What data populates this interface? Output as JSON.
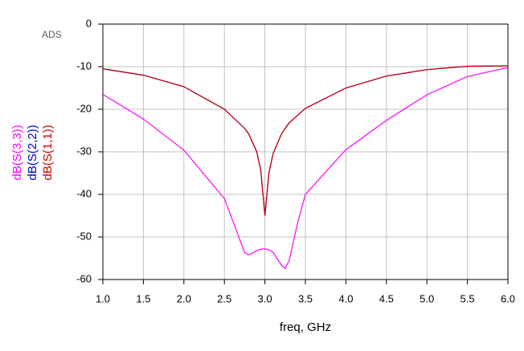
{
  "chart_data": {
    "type": "line",
    "watermark": "ADS",
    "x_label": "freq, GHz",
    "x": [
      1.0,
      1.5,
      2.0,
      2.5,
      2.75,
      2.8,
      2.9,
      2.95,
      3.0,
      3.05,
      3.1,
      3.2,
      3.25,
      3.3,
      3.4,
      3.5,
      4.0,
      4.5,
      5.0,
      5.5,
      6.0
    ],
    "series": [
      {
        "name": "dB(S(3,3))",
        "color": "#ff00ff",
        "values": [
          -16.5,
          -22.3,
          -29.6,
          -41,
          -53.7,
          -54.2,
          -53.2,
          -52.9,
          -52.8,
          -53,
          -53.6,
          -56.5,
          -57.4,
          -55.5,
          -47,
          -40,
          -29.5,
          -22.6,
          -16.6,
          -12.3,
          -10.2
        ]
      },
      {
        "name": "dB(S(2,2))",
        "color": "#0000cc",
        "values": [
          -10.5,
          -12,
          -14.7,
          -20,
          -24.5,
          -25.8,
          -30,
          -34.5,
          -45,
          -35,
          -30.5,
          -26,
          -24.5,
          -23.2,
          -21.5,
          -19.8,
          -15,
          -12.2,
          -10.7,
          -9.9,
          -9.8
        ]
      },
      {
        "name": "dB(S(1,1))",
        "color": "#cc0000",
        "values": [
          -10.5,
          -12,
          -14.7,
          -20,
          -24.5,
          -25.8,
          -30,
          -34.5,
          -45,
          -35,
          -30.5,
          -26,
          -24.5,
          -23.2,
          -21.5,
          -19.8,
          -15,
          -12.2,
          -10.7,
          -9.9,
          -9.8
        ]
      }
    ],
    "xlim": [
      1,
      6
    ],
    "xticks": [
      {
        "value": 1,
        "label": "1.0"
      },
      {
        "value": 1.5,
        "label": "1.5"
      },
      {
        "value": 2,
        "label": "2.0"
      },
      {
        "value": 2.5,
        "label": "2.5"
      },
      {
        "value": 3,
        "label": "3.0"
      },
      {
        "value": 3.5,
        "label": "3.5"
      },
      {
        "value": 4,
        "label": "4.0"
      },
      {
        "value": 4.5,
        "label": "4.5"
      },
      {
        "value": 5,
        "label": "5.0"
      },
      {
        "value": 5.5,
        "label": "5.5"
      },
      {
        "value": 6,
        "label": "6.0"
      }
    ],
    "ylim": [
      -60,
      0
    ],
    "yticks": [
      0,
      -10,
      -20,
      -30,
      -40,
      -50,
      -60
    ],
    "grid": true
  }
}
